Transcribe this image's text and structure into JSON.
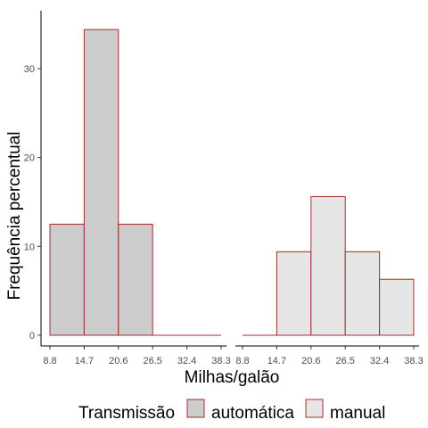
{
  "chart_data": {
    "type": "bar",
    "xlabel": "Milhas/galão",
    "ylabel": "Frequência percentual",
    "bin_edges": [
      8.8,
      14.7,
      20.6,
      26.5,
      32.4,
      38.3
    ],
    "x_tick_labels": [
      "8.8",
      "14.7",
      "20.6",
      "26.5",
      "32.4",
      "38.3"
    ],
    "ylim": [
      0,
      36.5
    ],
    "y_ticks": [
      0,
      10,
      20,
      30
    ],
    "grid": false,
    "facets": [
      "automática",
      "manual"
    ],
    "series": [
      {
        "name": "automática",
        "values": [
          12.5,
          34.4,
          12.5,
          0,
          0
        ],
        "fill": "#cccccc",
        "stroke": "#a52a2a"
      },
      {
        "name": "manual",
        "values": [
          0,
          9.4,
          15.6,
          9.4,
          6.3
        ],
        "fill": "#e6e6e6",
        "stroke": "#a52a2a"
      }
    ],
    "legend": {
      "title": "Transmissão",
      "position": "bottom",
      "items": [
        "automática",
        "manual"
      ]
    }
  }
}
